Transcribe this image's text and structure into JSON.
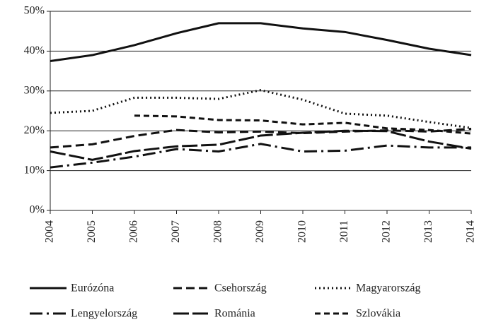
{
  "chart_data": {
    "type": "line",
    "x": [
      2004,
      2005,
      2006,
      2007,
      2008,
      2009,
      2010,
      2011,
      2012,
      2013,
      2014
    ],
    "xlim": [
      2004,
      2014
    ],
    "xticks": [
      2004,
      2005,
      2006,
      2007,
      2008,
      2009,
      2010,
      2011,
      2012,
      2013,
      2014
    ],
    "ylim": [
      0,
      50
    ],
    "yticks": [
      {
        "value": 0,
        "label": "0%"
      },
      {
        "value": 10,
        "label": "10%"
      },
      {
        "value": 20,
        "label": "20%"
      },
      {
        "value": 30,
        "label": "30%"
      },
      {
        "value": 40,
        "label": "40%"
      },
      {
        "value": 50,
        "label": "50%"
      }
    ],
    "grid": true,
    "legend": "bottom",
    "series": [
      {
        "name": "Eurózóna",
        "color": "#111",
        "dash": "none",
        "values": [
          37.5,
          39,
          41.5,
          44.5,
          47,
          47,
          45.7,
          44.8,
          42.8,
          40.6,
          39
        ]
      },
      {
        "name": "Csehország",
        "color": "#111",
        "dash": "12,6",
        "values": [
          15.8,
          16.6,
          18.7,
          20.2,
          19.6,
          19.8,
          19.4,
          19.8,
          20.1,
          19.8,
          20.5
        ]
      },
      {
        "name": "Magyarország",
        "color": "#111",
        "dash": "2,4",
        "values": [
          24.5,
          25,
          28.3,
          28.3,
          28,
          30.2,
          27.8,
          24.3,
          23.8,
          22.2,
          20.7
        ]
      },
      {
        "name": "Lengyelország",
        "color": "#111",
        "dash": "18,6,3,6",
        "values": [
          10.8,
          12,
          13.5,
          15.4,
          14.8,
          16.7,
          14.8,
          15,
          16.3,
          15.8,
          15.8
        ]
      },
      {
        "name": "Románia",
        "color": "#111",
        "dash": "22,5",
        "values": [
          14.8,
          12.7,
          14.9,
          16.1,
          16.5,
          18.8,
          19.5,
          20,
          19.9,
          17.3,
          15.5
        ]
      },
      {
        "name": "Szlovákia",
        "color": "#111",
        "dash": "8,5",
        "values": [
          null,
          null,
          23.8,
          23.6,
          22.7,
          22.6,
          21.6,
          22,
          20.6,
          20.2,
          19.3
        ]
      }
    ]
  }
}
